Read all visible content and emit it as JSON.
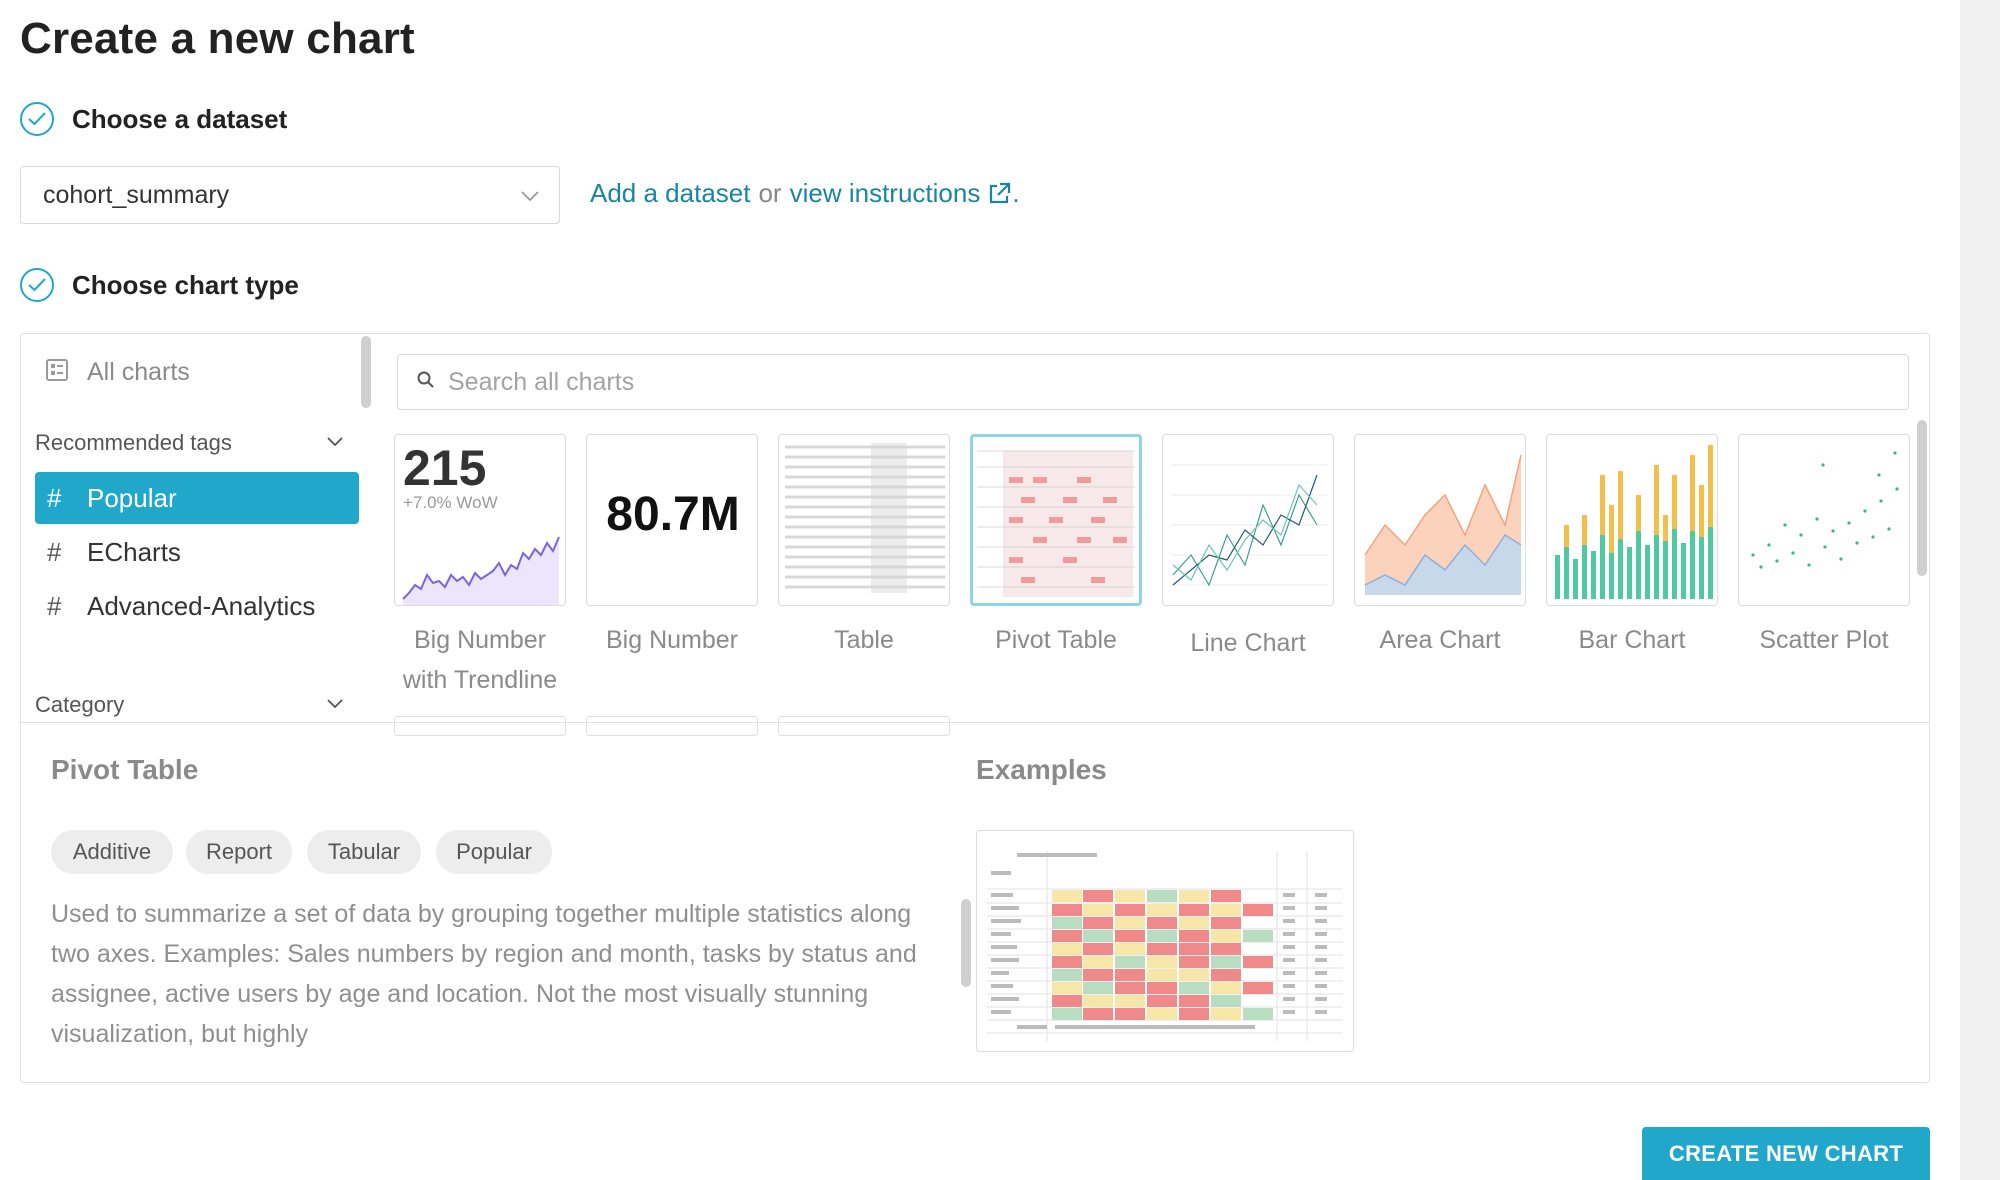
{
  "page": {
    "title": "Create a new chart"
  },
  "steps": {
    "dataset": {
      "label": "Choose a dataset"
    },
    "chart_type": {
      "label": "Choose chart type"
    }
  },
  "dataset": {
    "selected": "cohort_summary",
    "add_link": "Add a dataset",
    "or_text": "or",
    "instructions_link": "view instructions",
    "period": "."
  },
  "sidebar": {
    "all_charts": "All charts",
    "recommended_title": "Recommended tags",
    "tags": [
      {
        "label": "Popular",
        "selected": true
      },
      {
        "label": "ECharts",
        "selected": false
      },
      {
        "label": "Advanced-Analytics",
        "selected": false
      }
    ],
    "category_title": "Category"
  },
  "search": {
    "placeholder": "Search all charts"
  },
  "gallery": {
    "tiles": [
      {
        "label_line1": "Big Number",
        "label_line2": "with Trendline",
        "thumb_value": "215",
        "thumb_sub": "+7.0% WoW"
      },
      {
        "label_line1": "Big Number",
        "label_line2": "",
        "thumb_value": "80.7M"
      },
      {
        "label_line1": "Table",
        "label_line2": ""
      },
      {
        "label_line1": "Pivot Table",
        "label_line2": "",
        "selected": true
      },
      {
        "label_line1": "Line Chart",
        "label_line2": ""
      },
      {
        "label_line1": "Area Chart",
        "label_line2": ""
      },
      {
        "label_line1": "Bar Chart",
        "label_line2": ""
      },
      {
        "label_line1": "Scatter Plot",
        "label_line2": ""
      }
    ]
  },
  "detail": {
    "title": "Pivot Table",
    "tags": [
      "Additive",
      "Report",
      "Tabular",
      "Popular"
    ],
    "description": "Used to summarize a set of data by grouping together multiple statistics along two axes. Examples: Sales numbers by region and month, tasks by status and assignee, active users by age and location. Not the most visually stunning visualization, but highly",
    "examples_title": "Examples"
  },
  "actions": {
    "create": "CREATE NEW CHART"
  },
  "colors": {
    "accent": "#20a7c9",
    "link": "#1a85a0"
  }
}
